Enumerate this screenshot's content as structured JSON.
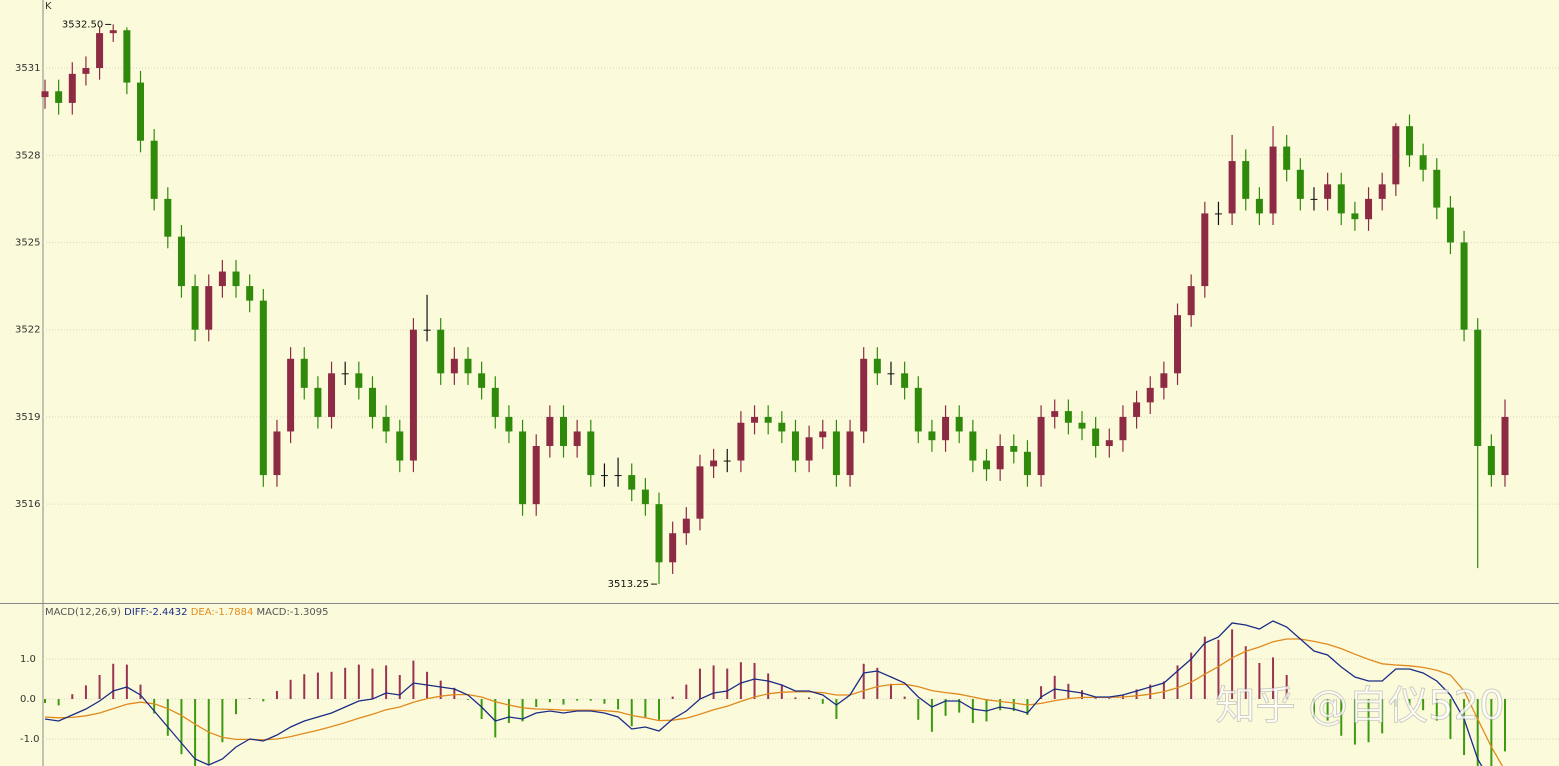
{
  "chart_data": [
    {
      "type": "candlestick",
      "label": "K",
      "ylim": [
        3512.6,
        3533.34
      ],
      "yticks": [
        3516,
        3519,
        3522,
        3525,
        3528,
        3531
      ],
      "grid": true,
      "up_color": "#8e2b44",
      "down_color": "#2f8a0c",
      "high_label": "3532.50",
      "low_label": "3513.25",
      "candles": [
        [
          3530.0,
          3530.6,
          3529.6,
          3530.2
        ],
        [
          3530.2,
          3530.6,
          3529.4,
          3529.8
        ],
        [
          3529.8,
          3531.2,
          3529.4,
          3530.8
        ],
        [
          3530.8,
          3531.4,
          3530.4,
          3531.0
        ],
        [
          3531.0,
          3532.4,
          3530.6,
          3532.2
        ],
        [
          3532.2,
          3532.5,
          3531.9,
          3532.3
        ],
        [
          3532.3,
          3532.4,
          3530.1,
          3530.5
        ],
        [
          3530.5,
          3530.9,
          3528.1,
          3528.5
        ],
        [
          3528.5,
          3528.9,
          3526.1,
          3526.5
        ],
        [
          3526.5,
          3526.9,
          3524.8,
          3525.2
        ],
        [
          3525.2,
          3525.6,
          3523.1,
          3523.5
        ],
        [
          3523.5,
          3523.9,
          3521.6,
          3522.0
        ],
        [
          3522.0,
          3523.9,
          3521.6,
          3523.5
        ],
        [
          3523.5,
          3524.4,
          3523.1,
          3524.0
        ],
        [
          3524.0,
          3524.4,
          3523.1,
          3523.5
        ],
        [
          3523.5,
          3523.9,
          3522.6,
          3523.0
        ],
        [
          3523.0,
          3523.4,
          3516.6,
          3517.0
        ],
        [
          3517.0,
          3518.9,
          3516.6,
          3518.5
        ],
        [
          3518.5,
          3521.4,
          3518.1,
          3521.0
        ],
        [
          3521.0,
          3521.4,
          3519.6,
          3520.0
        ],
        [
          3520.0,
          3520.4,
          3518.6,
          3519.0
        ],
        [
          3519.0,
          3520.9,
          3518.6,
          3520.5
        ],
        [
          3520.5,
          3520.9,
          3520.1,
          3520.5
        ],
        [
          3520.5,
          3520.9,
          3519.6,
          3520.0
        ],
        [
          3520.0,
          3520.4,
          3518.6,
          3519.0
        ],
        [
          3519.0,
          3519.4,
          3518.1,
          3518.5
        ],
        [
          3518.5,
          3518.9,
          3517.1,
          3517.5
        ],
        [
          3517.5,
          3522.4,
          3517.1,
          3522.0
        ],
        [
          3522.0,
          3523.2,
          3521.6,
          3522.0
        ],
        [
          3522.0,
          3522.4,
          3520.1,
          3520.5
        ],
        [
          3520.5,
          3521.4,
          3520.1,
          3521.0
        ],
        [
          3521.0,
          3521.4,
          3520.1,
          3520.5
        ],
        [
          3520.5,
          3520.9,
          3519.6,
          3520.0
        ],
        [
          3520.0,
          3520.4,
          3518.6,
          3519.0
        ],
        [
          3519.0,
          3519.4,
          3518.1,
          3518.5
        ],
        [
          3518.5,
          3518.9,
          3515.6,
          3516.0
        ],
        [
          3516.0,
          3518.4,
          3515.6,
          3518.0
        ],
        [
          3518.0,
          3519.4,
          3517.6,
          3519.0
        ],
        [
          3519.0,
          3519.4,
          3517.6,
          3518.0
        ],
        [
          3518.0,
          3518.9,
          3517.6,
          3518.5
        ],
        [
          3518.5,
          3518.9,
          3516.6,
          3517.0
        ],
        [
          3517.0,
          3517.4,
          3516.6,
          3517.0
        ],
        [
          3517.0,
          3517.6,
          3516.6,
          3517.0
        ],
        [
          3517.0,
          3517.4,
          3516.1,
          3516.5
        ],
        [
          3516.5,
          3516.9,
          3515.6,
          3516.0
        ],
        [
          3516.0,
          3516.4,
          3513.25,
          3514.0
        ],
        [
          3514.0,
          3515.4,
          3513.6,
          3515.0
        ],
        [
          3515.0,
          3515.9,
          3514.6,
          3515.5
        ],
        [
          3515.5,
          3517.7,
          3515.1,
          3517.3
        ],
        [
          3517.3,
          3517.9,
          3516.9,
          3517.5
        ],
        [
          3517.5,
          3517.9,
          3517.1,
          3517.5
        ],
        [
          3517.5,
          3519.2,
          3517.1,
          3518.8
        ],
        [
          3518.8,
          3519.4,
          3518.4,
          3519.0
        ],
        [
          3519.0,
          3519.4,
          3518.4,
          3518.8
        ],
        [
          3518.8,
          3519.2,
          3518.1,
          3518.5
        ],
        [
          3518.5,
          3518.9,
          3517.1,
          3517.5
        ],
        [
          3517.5,
          3518.7,
          3517.1,
          3518.3
        ],
        [
          3518.3,
          3518.9,
          3517.9,
          3518.5
        ],
        [
          3518.5,
          3518.9,
          3516.6,
          3517.0
        ],
        [
          3517.0,
          3518.9,
          3516.6,
          3518.5
        ],
        [
          3518.5,
          3521.4,
          3518.1,
          3521.0
        ],
        [
          3521.0,
          3521.4,
          3520.1,
          3520.5
        ],
        [
          3520.5,
          3520.9,
          3520.1,
          3520.5
        ],
        [
          3520.5,
          3520.9,
          3519.6,
          3520.0
        ],
        [
          3520.0,
          3520.4,
          3518.1,
          3518.5
        ],
        [
          3518.5,
          3518.9,
          3517.8,
          3518.2
        ],
        [
          3518.2,
          3519.4,
          3517.8,
          3519.0
        ],
        [
          3519.0,
          3519.4,
          3518.1,
          3518.5
        ],
        [
          3518.5,
          3518.9,
          3517.1,
          3517.5
        ],
        [
          3517.5,
          3517.9,
          3516.8,
          3517.2
        ],
        [
          3517.2,
          3518.4,
          3516.8,
          3518.0
        ],
        [
          3518.0,
          3518.4,
          3517.4,
          3517.8
        ],
        [
          3517.8,
          3518.2,
          3516.6,
          3517.0
        ],
        [
          3517.0,
          3519.4,
          3516.6,
          3519.0
        ],
        [
          3519.0,
          3519.6,
          3518.6,
          3519.2
        ],
        [
          3519.2,
          3519.6,
          3518.4,
          3518.8
        ],
        [
          3518.8,
          3519.2,
          3518.2,
          3518.6
        ],
        [
          3518.6,
          3519.0,
          3517.6,
          3518.0
        ],
        [
          3518.0,
          3518.6,
          3517.6,
          3518.2
        ],
        [
          3518.2,
          3519.4,
          3517.8,
          3519.0
        ],
        [
          3519.0,
          3519.9,
          3518.6,
          3519.5
        ],
        [
          3519.5,
          3520.4,
          3519.1,
          3520.0
        ],
        [
          3520.0,
          3520.9,
          3519.6,
          3520.5
        ],
        [
          3520.5,
          3522.9,
          3520.1,
          3522.5
        ],
        [
          3522.5,
          3523.9,
          3522.1,
          3523.5
        ],
        [
          3523.5,
          3526.4,
          3523.1,
          3526.0
        ],
        [
          3526.0,
          3526.4,
          3525.6,
          3526.0
        ],
        [
          3526.0,
          3528.7,
          3525.6,
          3527.8
        ],
        [
          3527.8,
          3528.2,
          3526.1,
          3526.5
        ],
        [
          3526.5,
          3526.9,
          3525.6,
          3526.0
        ],
        [
          3526.0,
          3529.0,
          3525.6,
          3528.3
        ],
        [
          3528.3,
          3528.7,
          3527.1,
          3527.5
        ],
        [
          3527.5,
          3527.9,
          3526.1,
          3526.5
        ],
        [
          3526.5,
          3526.9,
          3526.1,
          3526.5
        ],
        [
          3526.5,
          3527.4,
          3526.1,
          3527.0
        ],
        [
          3527.0,
          3527.4,
          3525.6,
          3526.0
        ],
        [
          3526.0,
          3526.4,
          3525.4,
          3525.8
        ],
        [
          3525.8,
          3526.9,
          3525.4,
          3526.5
        ],
        [
          3526.5,
          3527.4,
          3526.1,
          3527.0
        ],
        [
          3527.0,
          3529.1,
          3526.6,
          3529.0
        ],
        [
          3529.0,
          3529.4,
          3527.6,
          3528.0
        ],
        [
          3528.0,
          3528.4,
          3527.1,
          3527.5
        ],
        [
          3527.5,
          3527.9,
          3525.8,
          3526.2
        ],
        [
          3526.2,
          3526.6,
          3524.6,
          3525.0
        ],
        [
          3525.0,
          3525.4,
          3521.6,
          3522.0
        ],
        [
          3522.0,
          3522.4,
          3513.8,
          3518.0
        ],
        [
          3518.0,
          3518.4,
          3516.6,
          3517.0
        ],
        [
          3517.0,
          3519.6,
          3516.6,
          3519.0
        ]
      ]
    },
    {
      "type": "macd",
      "title": "MACD(12,26,9)",
      "diff_label": "DIFF:-2.4432",
      "dea_label": "DEA:-1.7884",
      "macd_label": "MACD:-1.3095",
      "ylim": [
        -1.675,
        2.375
      ],
      "yticks": [
        {
          "value": 1,
          "label": "1.0"
        },
        {
          "value": 0,
          "label": "0.0"
        },
        {
          "value": -1,
          "label": "-1.0"
        }
      ],
      "grid": true,
      "diff_color": "#1c2c86",
      "dea_color": "#e08a1e",
      "up_color": "#9a3350",
      "down_color": "#3d9a10",
      "diff": [
        -0.5,
        -0.55,
        -0.4,
        -0.25,
        -0.05,
        0.2,
        0.3,
        0.1,
        -0.3,
        -0.7,
        -1.1,
        -1.5,
        -1.65,
        -1.5,
        -1.2,
        -1.0,
        -1.05,
        -0.9,
        -0.7,
        -0.55,
        -0.45,
        -0.35,
        -0.2,
        -0.05,
        0.0,
        0.15,
        0.1,
        0.4,
        0.35,
        0.3,
        0.25,
        0.1,
        -0.2,
        -0.55,
        -0.45,
        -0.5,
        -0.35,
        -0.3,
        -0.35,
        -0.3,
        -0.3,
        -0.35,
        -0.45,
        -0.75,
        -0.7,
        -0.8,
        -0.5,
        -0.3,
        0.0,
        0.15,
        0.2,
        0.4,
        0.5,
        0.45,
        0.35,
        0.2,
        0.2,
        0.1,
        -0.15,
        0.1,
        0.65,
        0.7,
        0.55,
        0.4,
        0.05,
        -0.2,
        -0.05,
        -0.05,
        -0.25,
        -0.3,
        -0.2,
        -0.25,
        -0.35,
        0.05,
        0.25,
        0.2,
        0.15,
        0.05,
        0.05,
        0.1,
        0.2,
        0.3,
        0.4,
        0.7,
        1.0,
        1.4,
        1.55,
        1.9,
        1.85,
        1.75,
        1.95,
        1.8,
        1.5,
        1.2,
        1.1,
        0.8,
        0.55,
        0.45,
        0.45,
        0.75,
        0.75,
        0.65,
        0.45,
        0.1,
        -0.5,
        -1.5,
        -2.1,
        -2.4432
      ],
      "dea": [
        -0.45,
        -0.47,
        -0.46,
        -0.42,
        -0.35,
        -0.24,
        -0.13,
        -0.08,
        -0.12,
        -0.24,
        -0.41,
        -0.63,
        -0.83,
        -0.96,
        -1.01,
        -1.01,
        -1.02,
        -1.0,
        -0.94,
        -0.86,
        -0.78,
        -0.69,
        -0.59,
        -0.48,
        -0.38,
        -0.27,
        -0.2,
        -0.08,
        0.01,
        0.07,
        0.11,
        0.11,
        0.05,
        -0.07,
        -0.15,
        -0.22,
        -0.25,
        -0.26,
        -0.28,
        -0.28,
        -0.28,
        -0.29,
        -0.32,
        -0.41,
        -0.47,
        -0.54,
        -0.53,
        -0.48,
        -0.38,
        -0.27,
        -0.18,
        -0.06,
        0.05,
        0.13,
        0.17,
        0.18,
        0.18,
        0.16,
        0.1,
        0.1,
        0.21,
        0.31,
        0.36,
        0.37,
        0.31,
        0.21,
        0.16,
        0.12,
        0.05,
        -0.02,
        -0.06,
        -0.1,
        -0.15,
        -0.11,
        -0.04,
        0.01,
        0.04,
        0.04,
        0.04,
        0.05,
        0.08,
        0.12,
        0.18,
        0.28,
        0.42,
        0.62,
        0.81,
        1.03,
        1.19,
        1.3,
        1.43,
        1.5,
        1.5,
        1.44,
        1.37,
        1.26,
        1.12,
        0.99,
        0.88,
        0.85,
        0.83,
        0.79,
        0.72,
        0.6,
        0.2,
        -0.5,
        -1.2,
        -1.7884
      ],
      "hist": [
        -0.1,
        -0.16,
        0.12,
        0.34,
        0.6,
        0.88,
        0.86,
        0.36,
        -0.36,
        -0.92,
        -1.38,
        -1.74,
        -1.64,
        -1.08,
        -0.38,
        0.02,
        -0.06,
        0.2,
        0.48,
        0.62,
        0.66,
        0.68,
        0.78,
        0.86,
        0.76,
        0.84,
        0.6,
        0.96,
        0.68,
        0.46,
        0.28,
        -0.02,
        -0.5,
        -0.96,
        -0.6,
        -0.56,
        -0.2,
        -0.08,
        -0.14,
        -0.04,
        -0.04,
        -0.12,
        -0.26,
        -0.68,
        -0.46,
        -0.52,
        0.06,
        0.36,
        0.76,
        0.84,
        0.76,
        0.92,
        0.9,
        0.64,
        0.36,
        0.04,
        0.04,
        -0.12,
        -0.5,
        0.0,
        0.88,
        0.78,
        0.38,
        0.06,
        -0.52,
        -0.82,
        -0.42,
        -0.34,
        -0.6,
        -0.56,
        -0.28,
        -0.3,
        -0.4,
        0.32,
        0.58,
        0.38,
        0.22,
        0.02,
        0.02,
        0.1,
        0.24,
        0.36,
        0.44,
        0.84,
        1.16,
        1.56,
        1.48,
        1.74,
        1.32,
        0.9,
        1.04,
        0.6,
        0.0,
        -0.48,
        -0.54,
        -0.92,
        -1.14,
        -1.08,
        -0.86,
        -0.2,
        -0.16,
        -0.28,
        -0.54,
        -1.0,
        -1.4,
        -2.0,
        -1.8,
        -1.3095
      ]
    }
  ],
  "watermark": "知乎 @自仪520"
}
